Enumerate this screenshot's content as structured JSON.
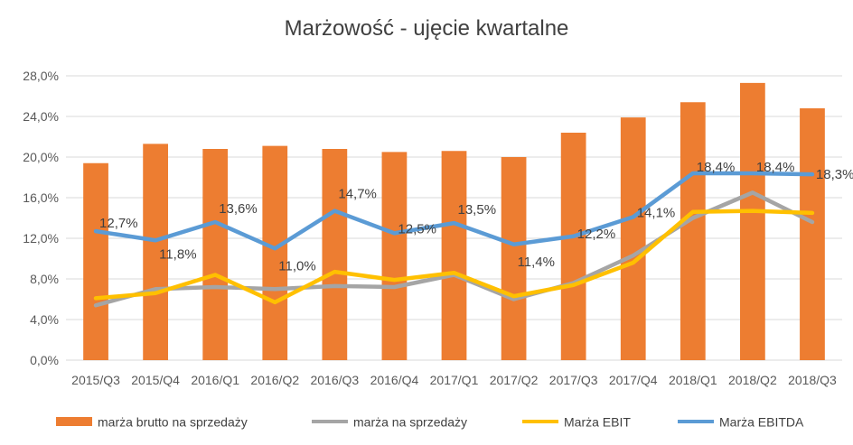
{
  "chart_data": {
    "type": "bar",
    "title": "Marżowość - ujęcie kwartalne",
    "categories": [
      "2015/Q3",
      "2015/Q4",
      "2016/Q1",
      "2016/Q2",
      "2016/Q3",
      "2016/Q4",
      "2017/Q1",
      "2017/Q2",
      "2017/Q3",
      "2017/Q4",
      "2018/Q1",
      "2018/Q2",
      "2018/Q3"
    ],
    "ylim": [
      0,
      28
    ],
    "yticks": [
      "0,0%",
      "4,0%",
      "8,0%",
      "12,0%",
      "16,0%",
      "20,0%",
      "24,0%",
      "28,0%"
    ],
    "grid": true,
    "legend_position": "bottom",
    "series": [
      {
        "name": "marża brutto na sprzedaży",
        "kind": "bar",
        "color": "#ED7D31",
        "values": [
          19.4,
          21.3,
          20.8,
          21.1,
          20.8,
          20.5,
          20.6,
          20.0,
          22.4,
          23.9,
          25.4,
          27.3,
          24.8
        ]
      },
      {
        "name": "marża na sprzedaży",
        "kind": "line",
        "color": "#A5A5A5",
        "values": [
          5.4,
          7.0,
          7.2,
          7.0,
          7.3,
          7.2,
          8.4,
          6.0,
          7.6,
          10.3,
          14.0,
          16.5,
          13.6
        ]
      },
      {
        "name": "Marża EBIT",
        "kind": "line",
        "color": "#FFC000",
        "values": [
          6.1,
          6.6,
          8.4,
          5.7,
          8.7,
          7.9,
          8.6,
          6.3,
          7.4,
          9.6,
          14.6,
          14.7,
          14.5
        ]
      },
      {
        "name": "Marża EBITDA",
        "kind": "line",
        "color": "#5B9BD5",
        "values": [
          12.7,
          11.8,
          13.6,
          11.0,
          14.7,
          12.5,
          13.5,
          11.4,
          12.2,
          14.1,
          18.4,
          18.4,
          18.3
        ]
      }
    ],
    "data_labels": [
      "12,7%",
      "11,8%",
      "13,6%",
      "11,0%",
      "14,7%",
      "12,5%",
      "13,5%",
      "11,4%",
      "12,2%",
      "14,1%",
      "18,4%",
      "18,4%",
      "18,3%"
    ]
  }
}
